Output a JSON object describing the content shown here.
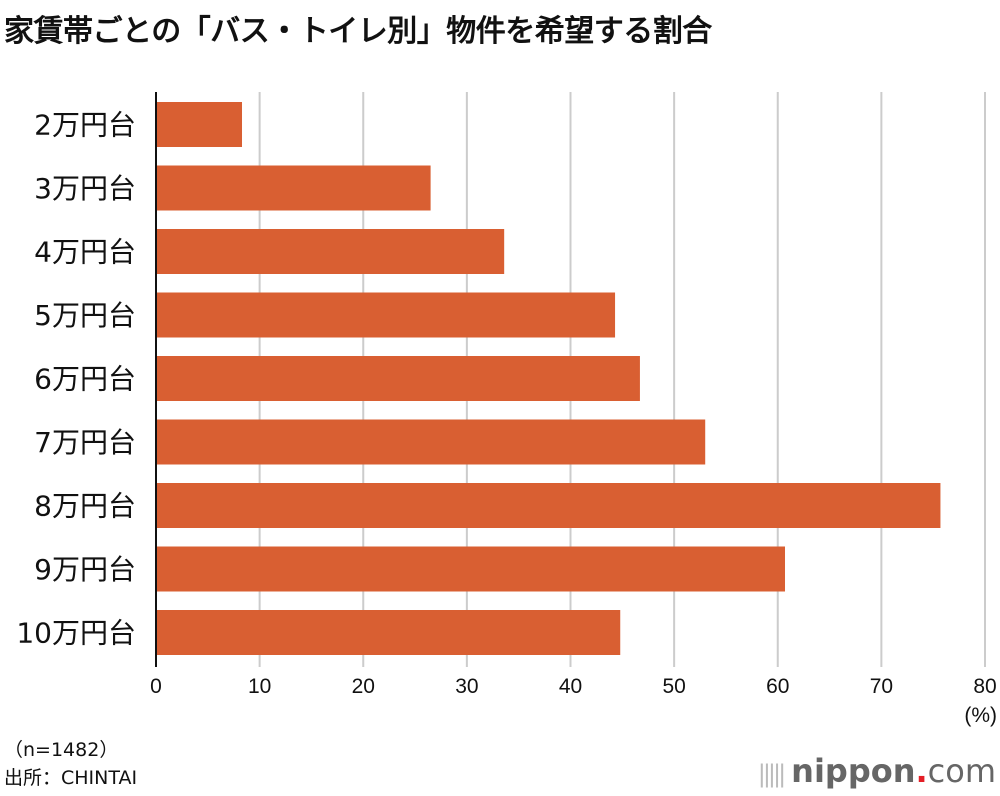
{
  "chart_data": {
    "type": "bar",
    "orientation": "horizontal",
    "title": "家賃帯ごとの「バス・トイレ別」物件を希望する割合",
    "categories": [
      "2万円台",
      "3万円台",
      "4万円台",
      "5万円台",
      "6万円台",
      "7万円台",
      "8万円台",
      "9万円台",
      "10万円台"
    ],
    "values": [
      8.3,
      26.5,
      33.6,
      44.3,
      46.7,
      53.0,
      75.7,
      60.7,
      44.8
    ],
    "xlabel": "(%)",
    "xlim": [
      0,
      80
    ],
    "xticks": [
      "0",
      "10",
      "20",
      "30",
      "40",
      "50",
      "60",
      "70",
      "80"
    ],
    "grid": true,
    "bar_color": "#d95f32"
  },
  "notes": {
    "sample": "（n=1482）",
    "source": "出所：CHINTAI"
  },
  "logo": {
    "name": "nippon",
    "dot": ".",
    "suffix": "com"
  }
}
